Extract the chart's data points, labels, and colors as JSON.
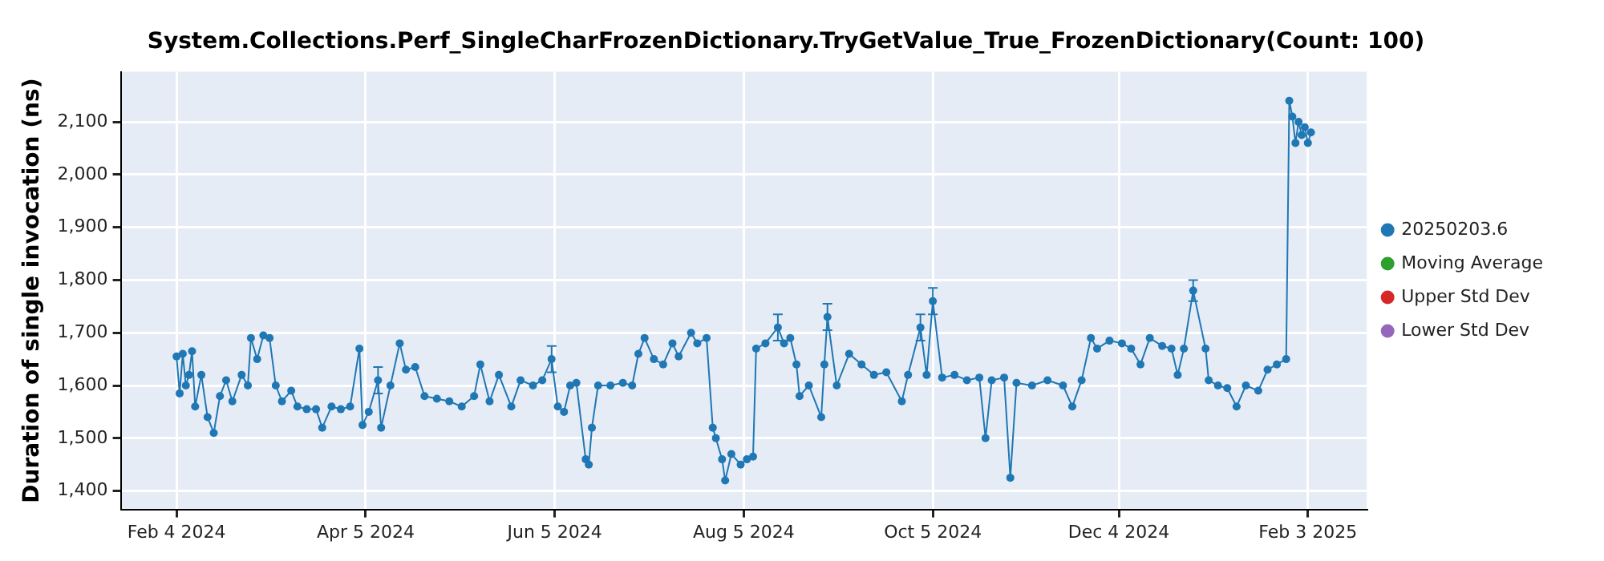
{
  "chart_data": {
    "type": "line",
    "title": "System.Collections.Perf_SingleCharFrozenDictionary.TryGetValue_True_FrozenDictionary(Count: 100)",
    "ylabel": "Duration of single invocation (ns)",
    "xlim": [
      "2024-01-17",
      "2025-02-22"
    ],
    "xticks": [
      {
        "value": "2024-02-04",
        "label": "Feb 4 2024"
      },
      {
        "value": "2024-04-05",
        "label": "Apr 5 2024"
      },
      {
        "value": "2024-06-05",
        "label": "Jun 5 2024"
      },
      {
        "value": "2024-08-05",
        "label": "Aug 5 2024"
      },
      {
        "value": "2024-10-05",
        "label": "Oct 5 2024"
      },
      {
        "value": "2024-12-04",
        "label": "Dec 4 2024"
      },
      {
        "value": "2025-02-03",
        "label": "Feb 3 2025"
      }
    ],
    "ylim": [
      1365,
      2195
    ],
    "yticks": [
      {
        "value": 1400,
        "label": "1,400"
      },
      {
        "value": 1500,
        "label": "1,500"
      },
      {
        "value": 1600,
        "label": "1,600"
      },
      {
        "value": 1700,
        "label": "1,700"
      },
      {
        "value": 1800,
        "label": "1,800"
      },
      {
        "value": 1900,
        "label": "1,900"
      },
      {
        "value": 2000,
        "label": "2,000"
      },
      {
        "value": 2100,
        "label": "2,100"
      }
    ],
    "grid": true,
    "legend": "right",
    "marker": "circle",
    "line_style": "solid",
    "series": [
      {
        "name": "20250203.6",
        "color": "#1f77b4",
        "x": [
          "2024-02-04",
          "2024-02-05",
          "2024-02-06",
          "2024-02-07",
          "2024-02-08",
          "2024-02-09",
          "2024-02-10",
          "2024-02-12",
          "2024-02-14",
          "2024-02-16",
          "2024-02-18",
          "2024-02-20",
          "2024-02-22",
          "2024-02-25",
          "2024-02-27",
          "2024-02-28",
          "2024-03-01",
          "2024-03-03",
          "2024-03-05",
          "2024-03-07",
          "2024-03-09",
          "2024-03-12",
          "2024-03-14",
          "2024-03-17",
          "2024-03-20",
          "2024-03-22",
          "2024-03-25",
          "2024-03-28",
          "2024-03-31",
          "2024-04-03",
          "2024-04-04",
          "2024-04-06",
          "2024-04-09",
          "2024-04-10",
          "2024-04-13",
          "2024-04-16",
          "2024-04-18",
          "2024-04-21",
          "2024-04-24",
          "2024-04-28",
          "2024-05-02",
          "2024-05-06",
          "2024-05-10",
          "2024-05-12",
          "2024-05-15",
          "2024-05-18",
          "2024-05-22",
          "2024-05-25",
          "2024-05-29",
          "2024-06-01",
          "2024-06-04",
          "2024-06-06",
          "2024-06-08",
          "2024-06-10",
          "2024-06-12",
          "2024-06-15",
          "2024-06-16",
          "2024-06-17",
          "2024-06-19",
          "2024-06-23",
          "2024-06-27",
          "2024-06-30",
          "2024-07-02",
          "2024-07-04",
          "2024-07-07",
          "2024-07-10",
          "2024-07-13",
          "2024-07-15",
          "2024-07-19",
          "2024-07-21",
          "2024-07-24",
          "2024-07-26",
          "2024-07-27",
          "2024-07-29",
          "2024-07-30",
          "2024-08-01",
          "2024-08-04",
          "2024-08-06",
          "2024-08-08",
          "2024-08-09",
          "2024-08-12",
          "2024-08-16",
          "2024-08-18",
          "2024-08-20",
          "2024-08-22",
          "2024-08-23",
          "2024-08-26",
          "2024-08-30",
          "2024-08-31",
          "2024-09-01",
          "2024-09-04",
          "2024-09-08",
          "2024-09-12",
          "2024-09-16",
          "2024-09-20",
          "2024-09-25",
          "2024-09-27",
          "2024-10-01",
          "2024-10-03",
          "2024-10-05",
          "2024-10-08",
          "2024-10-12",
          "2024-10-16",
          "2024-10-20",
          "2024-10-22",
          "2024-10-24",
          "2024-10-28",
          "2024-10-30",
          "2024-11-01",
          "2024-11-06",
          "2024-11-11",
          "2024-11-16",
          "2024-11-19",
          "2024-11-22",
          "2024-11-25",
          "2024-11-27",
          "2024-12-01",
          "2024-12-05",
          "2024-12-08",
          "2024-12-11",
          "2024-12-14",
          "2024-12-18",
          "2024-12-21",
          "2024-12-23",
          "2024-12-25",
          "2024-12-28",
          "2025-01-01",
          "2025-01-02",
          "2025-01-05",
          "2025-01-08",
          "2025-01-11",
          "2025-01-14",
          "2025-01-18",
          "2025-01-21",
          "2025-01-24",
          "2025-01-27",
          "2025-01-28",
          "2025-01-29",
          "2025-01-30",
          "2025-01-31",
          "2025-02-01",
          "2025-02-02",
          "2025-02-03",
          "2025-02-04"
        ],
        "values": [
          1655,
          1585,
          1660,
          1600,
          1620,
          1665,
          1560,
          1620,
          1540,
          1510,
          1580,
          1610,
          1570,
          1620,
          1600,
          1690,
          1650,
          1695,
          1690,
          1600,
          1570,
          1590,
          1560,
          1555,
          1555,
          1520,
          1560,
          1555,
          1560,
          1670,
          1525,
          1550,
          1610,
          1520,
          1600,
          1680,
          1630,
          1635,
          1580,
          1575,
          1570,
          1560,
          1580,
          1640,
          1570,
          1620,
          1560,
          1610,
          1600,
          1610,
          1650,
          1560,
          1550,
          1600,
          1605,
          1460,
          1450,
          1520,
          1600,
          1600,
          1605,
          1600,
          1660,
          1690,
          1650,
          1640,
          1680,
          1655,
          1700,
          1680,
          1690,
          1520,
          1500,
          1460,
          1420,
          1470,
          1450,
          1460,
          1465,
          1670,
          1680,
          1710,
          1680,
          1690,
          1640,
          1580,
          1600,
          1540,
          1640,
          1730,
          1600,
          1660,
          1640,
          1620,
          1625,
          1570,
          1620,
          1710,
          1620,
          1760,
          1615,
          1620,
          1610,
          1615,
          1500,
          1610,
          1615,
          1425,
          1605,
          1600,
          1610,
          1600,
          1560,
          1610,
          1690,
          1670,
          1685,
          1680,
          1670,
          1640,
          1690,
          1675,
          1670,
          1620,
          1670,
          1780,
          1670,
          1610,
          1600,
          1595,
          1560,
          1600,
          1590,
          1630,
          1640,
          1650,
          2140,
          2110,
          2060,
          2100,
          2075,
          2090,
          2060,
          2080
        ],
        "errors": [
          null,
          null,
          null,
          null,
          null,
          null,
          null,
          null,
          null,
          null,
          null,
          null,
          null,
          null,
          null,
          null,
          null,
          null,
          null,
          null,
          null,
          null,
          null,
          null,
          null,
          null,
          null,
          null,
          null,
          null,
          null,
          null,
          25,
          null,
          null,
          null,
          null,
          null,
          null,
          null,
          null,
          null,
          null,
          null,
          null,
          null,
          null,
          null,
          null,
          null,
          25,
          null,
          null,
          null,
          null,
          null,
          null,
          null,
          null,
          null,
          null,
          null,
          null,
          null,
          null,
          null,
          null,
          null,
          null,
          null,
          null,
          null,
          null,
          null,
          null,
          null,
          null,
          null,
          null,
          null,
          null,
          25,
          null,
          null,
          null,
          null,
          null,
          null,
          null,
          25,
          null,
          null,
          null,
          null,
          null,
          null,
          null,
          25,
          null,
          25,
          null,
          null,
          null,
          null,
          null,
          null,
          null,
          null,
          null,
          null,
          null,
          null,
          null,
          null,
          null,
          null,
          null,
          null,
          null,
          null,
          null,
          null,
          null,
          null,
          null,
          20,
          null,
          null,
          null,
          null,
          null,
          null,
          null,
          null,
          null,
          null,
          null,
          null,
          null,
          null,
          null,
          null,
          null,
          null
        ]
      },
      {
        "name": "Moving Average",
        "color": "#2ca02c"
      },
      {
        "name": "Upper Std Dev",
        "color": "#d62728"
      },
      {
        "name": "Lower Std Dev",
        "color": "#9467bd"
      }
    ]
  }
}
